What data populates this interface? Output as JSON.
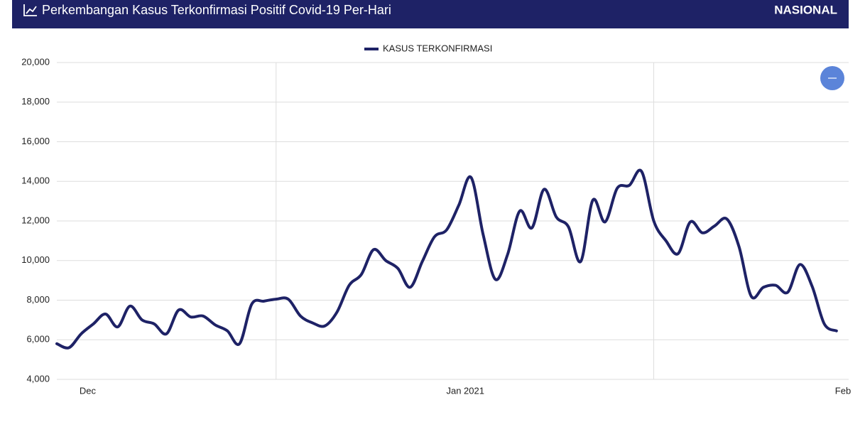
{
  "header": {
    "title": "Perkembangan Kasus Terkonfirmasi Positif Covid-19 Per-Hari",
    "scope": "NASIONAL"
  },
  "chart_data": {
    "type": "line",
    "x": [
      "2020-11-28",
      "2020-11-29",
      "2020-11-30",
      "2020-12-01",
      "2020-12-02",
      "2020-12-03",
      "2020-12-04",
      "2020-12-05",
      "2020-12-06",
      "2020-12-07",
      "2020-12-08",
      "2020-12-09",
      "2020-12-10",
      "2020-12-11",
      "2020-12-12",
      "2020-12-13",
      "2020-12-14",
      "2020-12-15",
      "2020-12-16",
      "2020-12-17",
      "2020-12-18",
      "2020-12-19",
      "2020-12-20",
      "2020-12-21",
      "2020-12-22",
      "2020-12-23",
      "2020-12-24",
      "2020-12-25",
      "2020-12-26",
      "2020-12-27",
      "2020-12-28",
      "2020-12-29",
      "2020-12-30",
      "2020-12-31",
      "2021-01-01",
      "2021-01-02",
      "2021-01-03",
      "2021-01-04",
      "2021-01-05",
      "2021-01-06",
      "2021-01-07",
      "2021-01-08",
      "2021-01-09",
      "2021-01-10",
      "2021-01-11",
      "2021-01-12",
      "2021-01-13",
      "2021-01-14",
      "2021-01-15",
      "2021-01-16",
      "2021-01-17",
      "2021-01-18",
      "2021-01-19",
      "2021-01-20",
      "2021-01-21",
      "2021-01-22",
      "2021-01-23",
      "2021-01-24",
      "2021-01-25",
      "2021-01-26",
      "2021-01-27",
      "2021-01-28",
      "2021-01-29",
      "2021-01-30",
      "2021-01-31"
    ],
    "series": [
      {
        "name": "KASUS TERKONFIRMASI",
        "color": "#1e2266",
        "values": [
          5800,
          5600,
          6300,
          6800,
          7300,
          6650,
          7700,
          7000,
          6800,
          6300,
          7500,
          7150,
          7200,
          6750,
          6450,
          5800,
          7800,
          7950,
          8050,
          8050,
          7200,
          6850,
          6700,
          7400,
          8750,
          9300,
          10550,
          10000,
          9600,
          8650,
          9950,
          11200,
          11550,
          12800,
          14200,
          11300,
          9050,
          10300,
          12500,
          11650,
          13600,
          12200,
          11700,
          9950,
          13050,
          11950,
          13650,
          13800,
          14500,
          12000,
          11000,
          10350,
          11950,
          11400,
          11750,
          12100,
          10700,
          8200,
          8650,
          8750,
          8400,
          9800,
          8700,
          6800,
          6450
        ]
      }
    ],
    "xlim": [
      "2020-11-28",
      "2021-02-01"
    ],
    "xticks": [
      {
        "value": "2020-12-01",
        "label": "Dec"
      },
      {
        "value": "2021-01-01",
        "label": "Jan 2021"
      },
      {
        "value": "2021-02-01",
        "label": "Feb"
      }
    ],
    "xgrid": [
      "2020-12-16",
      "2021-01-16"
    ],
    "ylim": [
      4000,
      20000
    ],
    "yticks": [
      {
        "value": 4000,
        "label": "4,000"
      },
      {
        "value": 6000,
        "label": "6,000"
      },
      {
        "value": 8000,
        "label": "8,000"
      },
      {
        "value": 10000,
        "label": "10,000"
      },
      {
        "value": 12000,
        "label": "12,000"
      },
      {
        "value": 14000,
        "label": "14,000"
      },
      {
        "value": 16000,
        "label": "16,000"
      },
      {
        "value": 18000,
        "label": "18,000"
      },
      {
        "value": 20000,
        "label": "20,000"
      }
    ],
    "grid": true,
    "legend": "top"
  }
}
